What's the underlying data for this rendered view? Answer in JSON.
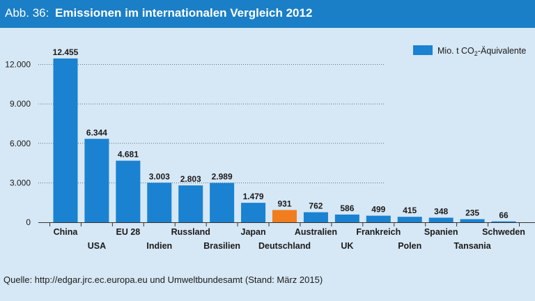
{
  "header": {
    "figure_number": "Abb. 36:",
    "title": "Emissionen im internationalen Vergleich 2012"
  },
  "source": "Quelle: http://edgar.jrc.ec.europa.eu und Umweltbundesamt (Stand: März 2015)",
  "colors": {
    "header_bg": "#1a7fc6",
    "background": "#d6e7f5",
    "bar": "#1a82d0",
    "highlight": "#f07d1e"
  },
  "chart_data": {
    "type": "bar",
    "title": "Emissionen im internationalen Vergleich 2012",
    "categories": [
      "China",
      "USA",
      "EU 28",
      "Indien",
      "Russland",
      "Brasilien",
      "Japan",
      "Deutschland",
      "Australien",
      "UK",
      "Frankreich",
      "Polen",
      "Spanien",
      "Tansania",
      "Schweden"
    ],
    "values": [
      12455,
      6344,
      4681,
      3003,
      2803,
      2989,
      1479,
      931,
      762,
      586,
      499,
      415,
      348,
      235,
      66
    ],
    "value_labels": [
      "12.455",
      "6.344",
      "4.681",
      "3.003",
      "2.803",
      "2.989",
      "1.479",
      "931",
      "762",
      "586",
      "499",
      "415",
      "348",
      "235",
      "66"
    ],
    "highlight_index": 7,
    "legend": {
      "label_prefix": "Mio. t CO",
      "subscript": "2",
      "label_suffix": "-Äquivalente",
      "position": "top-right"
    },
    "yticks": [
      0,
      3000,
      6000,
      9000,
      12000
    ],
    "ytick_labels": [
      "0",
      "3.000",
      "6.000",
      "9.000",
      "12.000"
    ],
    "ylim": [
      0,
      13000
    ],
    "xlabel": "",
    "ylabel": "",
    "grid": true
  }
}
